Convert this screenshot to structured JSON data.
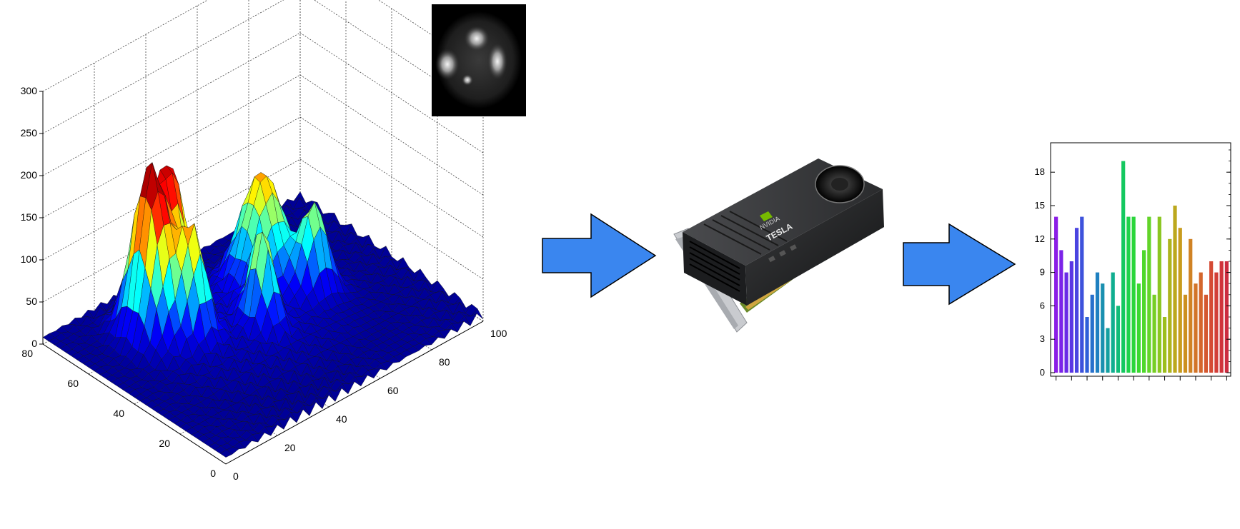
{
  "figure": {
    "step1": {
      "kind": "3d-surface-plot",
      "z_ticks": [
        "300",
        "250",
        "200",
        "150",
        "100",
        "50",
        "0"
      ],
      "y_ticks": [
        "80",
        "60",
        "40",
        "20",
        "0"
      ],
      "x_ticks": [
        "0",
        "20",
        "40",
        "60",
        "80",
        "100"
      ],
      "colormap": [
        "#00007f",
        "#0000ff",
        "#00ffff",
        "#ffff00",
        "#ff0000",
        "#7f0000"
      ]
    },
    "inset": {
      "kind": "grayscale-microscopy-image"
    },
    "gpu": {
      "brand_text": "NVIDIA",
      "model_text": "TESLA",
      "accent_color": "#76b900"
    },
    "arrows": {
      "fill": "#3a86ef",
      "stroke": "#000000"
    }
  },
  "chart_data": {
    "type": "bar",
    "ylim": [
      0,
      20
    ],
    "y_ticks": [
      "0",
      "3",
      "6",
      "9",
      "12",
      "15",
      "18"
    ],
    "values": [
      14,
      11,
      9,
      10,
      13,
      14,
      5,
      7,
      9,
      8,
      4,
      9,
      6,
      19,
      14,
      14,
      8,
      11,
      14,
      7,
      14,
      5,
      12,
      15,
      13,
      7,
      12,
      8,
      9,
      7,
      10,
      9,
      10,
      10
    ],
    "colors": [
      "#8b1ee6",
      "#7b23e8",
      "#6a2ae6",
      "#5a35e4",
      "#4a44e0",
      "#3d52dc",
      "#2f60d8",
      "#2770cc",
      "#1f80c0",
      "#1a90b0",
      "#14a0a0",
      "#10ae90",
      "#10bc78",
      "#14c860",
      "#1ed24a",
      "#2ad63a",
      "#3ad830",
      "#4ed82a",
      "#62d428",
      "#76ce24",
      "#8ac620",
      "#9cbe1e",
      "#aeb41e",
      "#bca81e",
      "#c89c1e",
      "#cc9020",
      "#d08224",
      "#d27428",
      "#d4662c",
      "#d45830",
      "#d44a34",
      "#d23e38",
      "#d0343c",
      "#cc2c40"
    ],
    "grid": false
  }
}
